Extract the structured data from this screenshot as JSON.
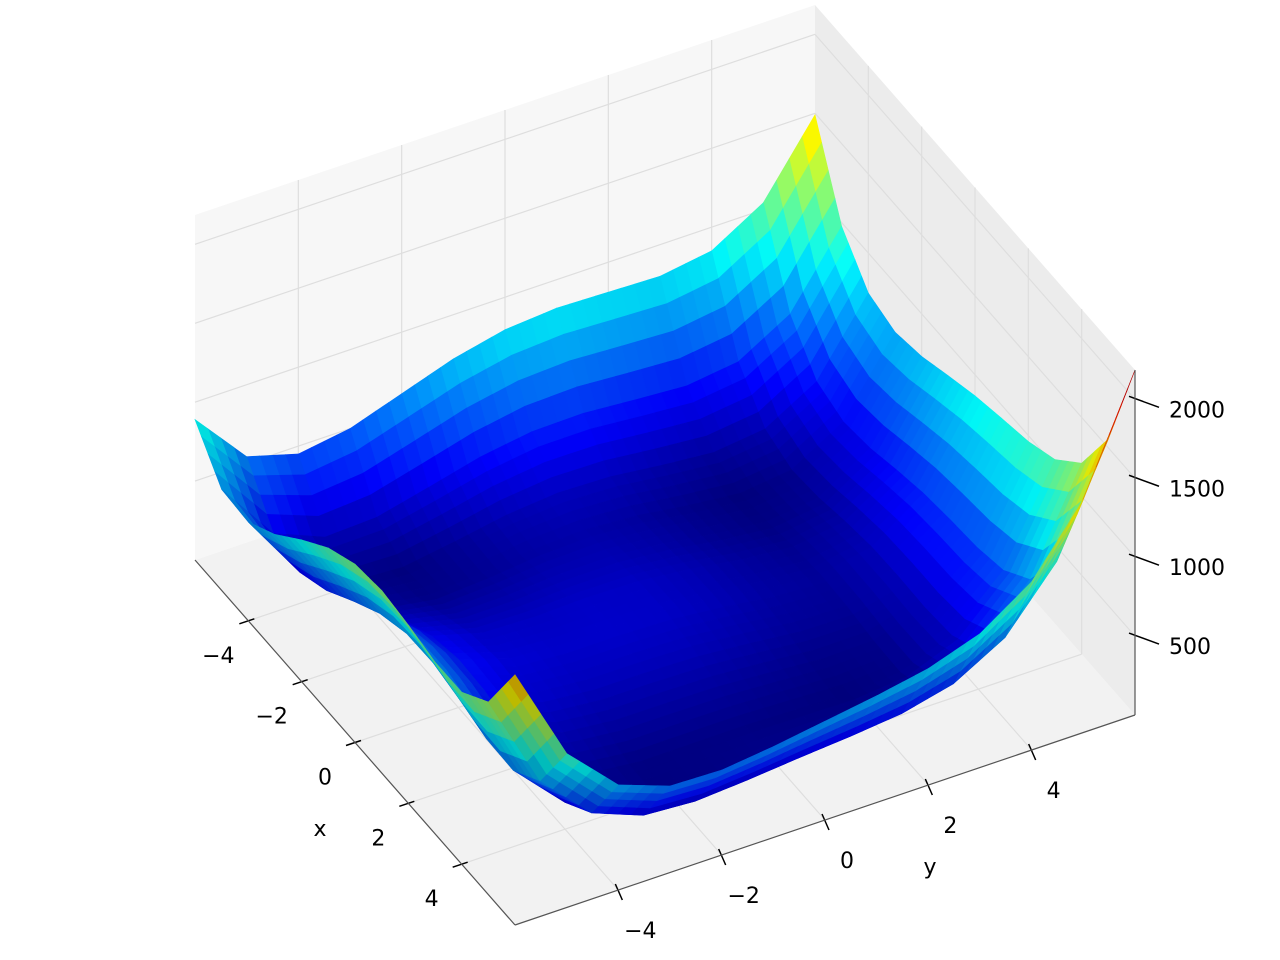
{
  "chart_data": {
    "type": "surface",
    "x_label": "x",
    "y_label": "y",
    "x": [
      -6,
      -5,
      -4,
      -3,
      -2,
      -1,
      0,
      1,
      2,
      3,
      4,
      5,
      6
    ],
    "y": [
      -6,
      -5,
      -4,
      -3,
      -2,
      -1,
      0,
      1,
      2,
      3,
      4,
      5,
      6
    ],
    "z": [
      [
        890,
        544,
        450,
        500,
        610,
        720,
        794,
        820,
        810,
        800,
        850,
        1044,
        1490
      ],
      [
        640,
        250,
        116,
        130,
        208,
        290,
        340,
        346,
        320,
        298,
        340,
        530,
        976
      ],
      [
        626,
        196,
        26,
        8,
        58,
        116,
        146,
        136,
        98,
        68,
        106,
        296,
        746
      ],
      [
        740,
        274,
        72,
        26,
        52,
        90,
        104,
        82,
        36,
        2,
        40,
        234,
        692
      ],
      [
        898,
        400,
        170,
        100,
        106,
        128,
        130,
        100,
        50,
        16,
        58,
        260,
        730
      ],
      [
        1040,
        514,
        260,
        170,
        160,
        170,
        164,
        130,
        80,
        50,
        100,
        314,
        800
      ],
      [
        1130,
        580,
        306,
        200,
        178,
        180,
        170,
        136,
        90,
        68,
        130,
        360,
        866
      ],
      [
        1156,
        586,
        296,
        178,
        148,
        146,
        136,
        106,
        68,
        58,
        136,
        386,
        916
      ],
      [
        1130,
        544,
        242,
        116,
        82,
        80,
        74,
        52,
        26,
        32,
        130,
        404,
        962
      ],
      [
        1088,
        490,
        180,
        50,
        16,
        18,
        20,
        10,
        0,
        26,
        148,
        450,
        1040
      ],
      [
        1090,
        484,
        170,
        40,
        10,
        20,
        34,
        40,
        50,
        100,
        250,
        584,
        1210
      ],
      [
        1220,
        610,
        296,
        170,
        148,
        170,
        200,
        226,
        260,
        338,
        520,
        890,
        1556
      ],
      [
        1586,
        976,
        666,
        548,
        538,
        576,
        626,
        676,
        738,
        848,
        1066,
        1476,
        2186
      ]
    ],
    "colormap": "jet",
    "xlim": [
      -6,
      6
    ],
    "ylim": [
      -6,
      6
    ],
    "zlim": [
      0,
      2186
    ],
    "xticks": [
      {
        "value": -4,
        "label": "−4"
      },
      {
        "value": -2,
        "label": "−2"
      },
      0,
      2,
      4
    ],
    "yticks": [
      {
        "value": -4,
        "label": "−4"
      },
      {
        "value": -2,
        "label": "−2"
      },
      0,
      2,
      4
    ],
    "zticks": [
      500,
      1000,
      1500,
      2000
    ],
    "grid": true
  }
}
